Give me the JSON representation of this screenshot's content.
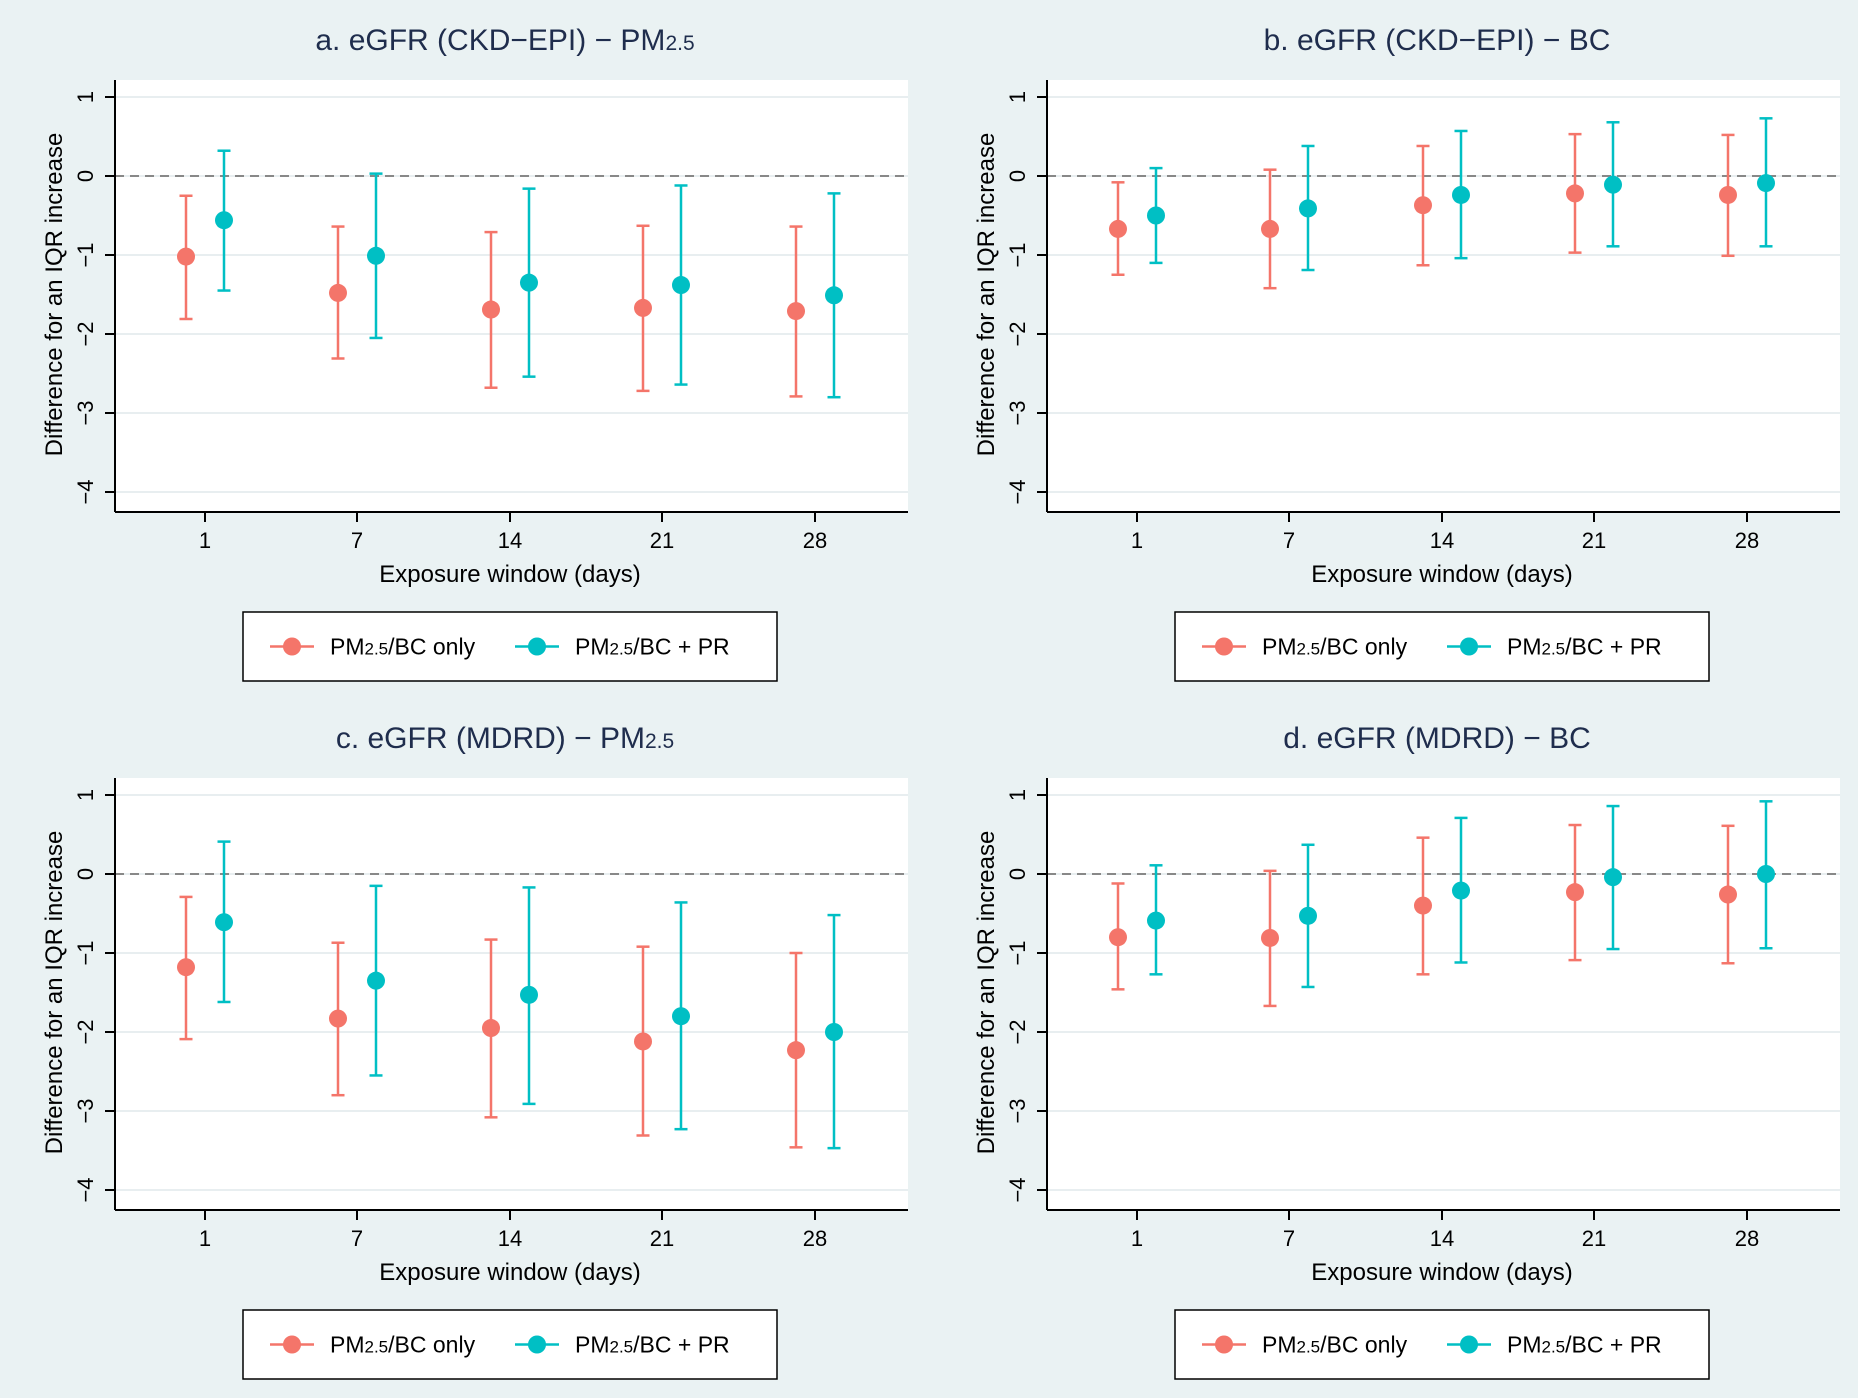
{
  "colors": {
    "background": "#EAF2F3",
    "plot_bg": "#FFFFFF",
    "axis": "#000000",
    "grid": "#E8EEF0",
    "reference_line": "#888888",
    "title": "#1F2D4D",
    "series_only": "#F4756A",
    "series_pr": "#00BFC4"
  },
  "chart_data": [
    {
      "type": "scatter",
      "title": "a. eGFR (CKD−EPI) − PM2.5",
      "title_parts": [
        "a. eGFR (CKD−EPI) − PM",
        "2.5",
        ""
      ],
      "xlabel": "Exposure window (days)",
      "ylabel": "Difference for an IQR increase",
      "categories": [
        "1",
        "7",
        "14",
        "21",
        "28"
      ],
      "ylim": [
        -4,
        1
      ],
      "yticks": [
        "−4",
        "−3",
        "−2",
        "−1",
        "0",
        "1"
      ],
      "reference_y": 0,
      "grid": true,
      "legend": "bottom",
      "series": [
        {
          "name": "PM2.5/BC only",
          "legend_parts": [
            "PM",
            "2.5",
            "/BC only"
          ],
          "color": "#F4756A",
          "estimate": [
            -1.02,
            -1.48,
            -1.69,
            -1.67,
            -1.71
          ],
          "lower": [
            -1.81,
            -2.31,
            -2.68,
            -2.72,
            -2.79
          ],
          "upper": [
            -0.25,
            -0.64,
            -0.71,
            -0.63,
            -0.64
          ]
        },
        {
          "name": "PM2.5/BC + PR",
          "legend_parts": [
            "PM",
            "2.5",
            "/BC + PR"
          ],
          "color": "#00BFC4",
          "estimate": [
            -0.56,
            -1.01,
            -1.35,
            -1.38,
            -1.51
          ],
          "lower": [
            -1.45,
            -2.05,
            -2.54,
            -2.64,
            -2.8
          ],
          "upper": [
            0.32,
            0.03,
            -0.16,
            -0.12,
            -0.22
          ]
        }
      ]
    },
    {
      "type": "scatter",
      "title": "b. eGFR (CKD−EPI) − BC",
      "title_parts": [
        "b. eGFR (CKD−EPI) − BC",
        "",
        ""
      ],
      "xlabel": "Exposure window (days)",
      "ylabel": "Difference for an IQR increase",
      "categories": [
        "1",
        "7",
        "14",
        "21",
        "28"
      ],
      "ylim": [
        -4,
        1
      ],
      "yticks": [
        "−4",
        "−3",
        "−2",
        "−1",
        "0",
        "1"
      ],
      "reference_y": 0,
      "grid": true,
      "legend": "bottom",
      "series": [
        {
          "name": "PM2.5/BC only",
          "legend_parts": [
            "PM",
            "2.5",
            "/BC only"
          ],
          "color": "#F4756A",
          "estimate": [
            -0.67,
            -0.67,
            -0.37,
            -0.22,
            -0.24
          ],
          "lower": [
            -1.25,
            -1.42,
            -1.13,
            -0.97,
            -1.01
          ],
          "upper": [
            -0.08,
            0.08,
            0.38,
            0.53,
            0.52
          ]
        },
        {
          "name": "PM2.5/BC + PR",
          "legend_parts": [
            "PM",
            "2.5",
            "/BC + PR"
          ],
          "color": "#00BFC4",
          "estimate": [
            -0.5,
            -0.41,
            -0.24,
            -0.11,
            -0.09
          ],
          "lower": [
            -1.1,
            -1.19,
            -1.04,
            -0.89,
            -0.89
          ],
          "upper": [
            0.1,
            0.38,
            0.57,
            0.68,
            0.73
          ]
        }
      ]
    },
    {
      "type": "scatter",
      "title": "c. eGFR (MDRD) − PM2.5",
      "title_parts": [
        "c. eGFR (MDRD) − PM",
        "2.5",
        ""
      ],
      "xlabel": "Exposure window (days)",
      "ylabel": "Difference for an IQR increase",
      "categories": [
        "1",
        "7",
        "14",
        "21",
        "28"
      ],
      "ylim": [
        -4,
        1
      ],
      "yticks": [
        "−4",
        "−3",
        "−2",
        "−1",
        "0",
        "1"
      ],
      "reference_y": 0,
      "grid": true,
      "legend": "bottom",
      "series": [
        {
          "name": "PM2.5/BC only",
          "legend_parts": [
            "PM",
            "2.5",
            "/BC only"
          ],
          "color": "#F4756A",
          "estimate": [
            -1.18,
            -1.83,
            -1.95,
            -2.12,
            -2.23
          ],
          "lower": [
            -2.09,
            -2.8,
            -3.08,
            -3.31,
            -3.46
          ],
          "upper": [
            -0.29,
            -0.87,
            -0.83,
            -0.92,
            -1.0
          ]
        },
        {
          "name": "PM2.5/BC + PR",
          "legend_parts": [
            "PM",
            "2.5",
            "/BC + PR"
          ],
          "color": "#00BFC4",
          "estimate": [
            -0.61,
            -1.35,
            -1.53,
            -1.8,
            -2.0
          ],
          "lower": [
            -1.62,
            -2.55,
            -2.91,
            -3.23,
            -3.47
          ],
          "upper": [
            0.41,
            -0.15,
            -0.17,
            -0.36,
            -0.52
          ]
        }
      ]
    },
    {
      "type": "scatter",
      "title": "d. eGFR (MDRD) − BC",
      "title_parts": [
        "d. eGFR (MDRD) − BC",
        "",
        ""
      ],
      "xlabel": "Exposure window (days)",
      "ylabel": "Difference for an IQR increase",
      "categories": [
        "1",
        "7",
        "14",
        "21",
        "28"
      ],
      "ylim": [
        -4,
        1
      ],
      "yticks": [
        "−4",
        "−3",
        "−2",
        "−1",
        "0",
        "1"
      ],
      "reference_y": 0,
      "grid": true,
      "legend": "bottom",
      "series": [
        {
          "name": "PM2.5/BC only",
          "legend_parts": [
            "PM",
            "2.5",
            "/BC only"
          ],
          "color": "#F4756A",
          "estimate": [
            -0.8,
            -0.81,
            -0.4,
            -0.23,
            -0.26
          ],
          "lower": [
            -1.46,
            -1.67,
            -1.27,
            -1.09,
            -1.13
          ],
          "upper": [
            -0.12,
            0.04,
            0.46,
            0.62,
            0.61
          ]
        },
        {
          "name": "PM2.5/BC + PR",
          "legend_parts": [
            "PM",
            "2.5",
            "/BC + PR"
          ],
          "color": "#00BFC4",
          "estimate": [
            -0.59,
            -0.53,
            -0.21,
            -0.04,
            0.0
          ],
          "lower": [
            -1.27,
            -1.43,
            -1.12,
            -0.95,
            -0.94
          ],
          "upper": [
            0.11,
            0.37,
            0.71,
            0.86,
            0.92
          ]
        }
      ]
    }
  ]
}
